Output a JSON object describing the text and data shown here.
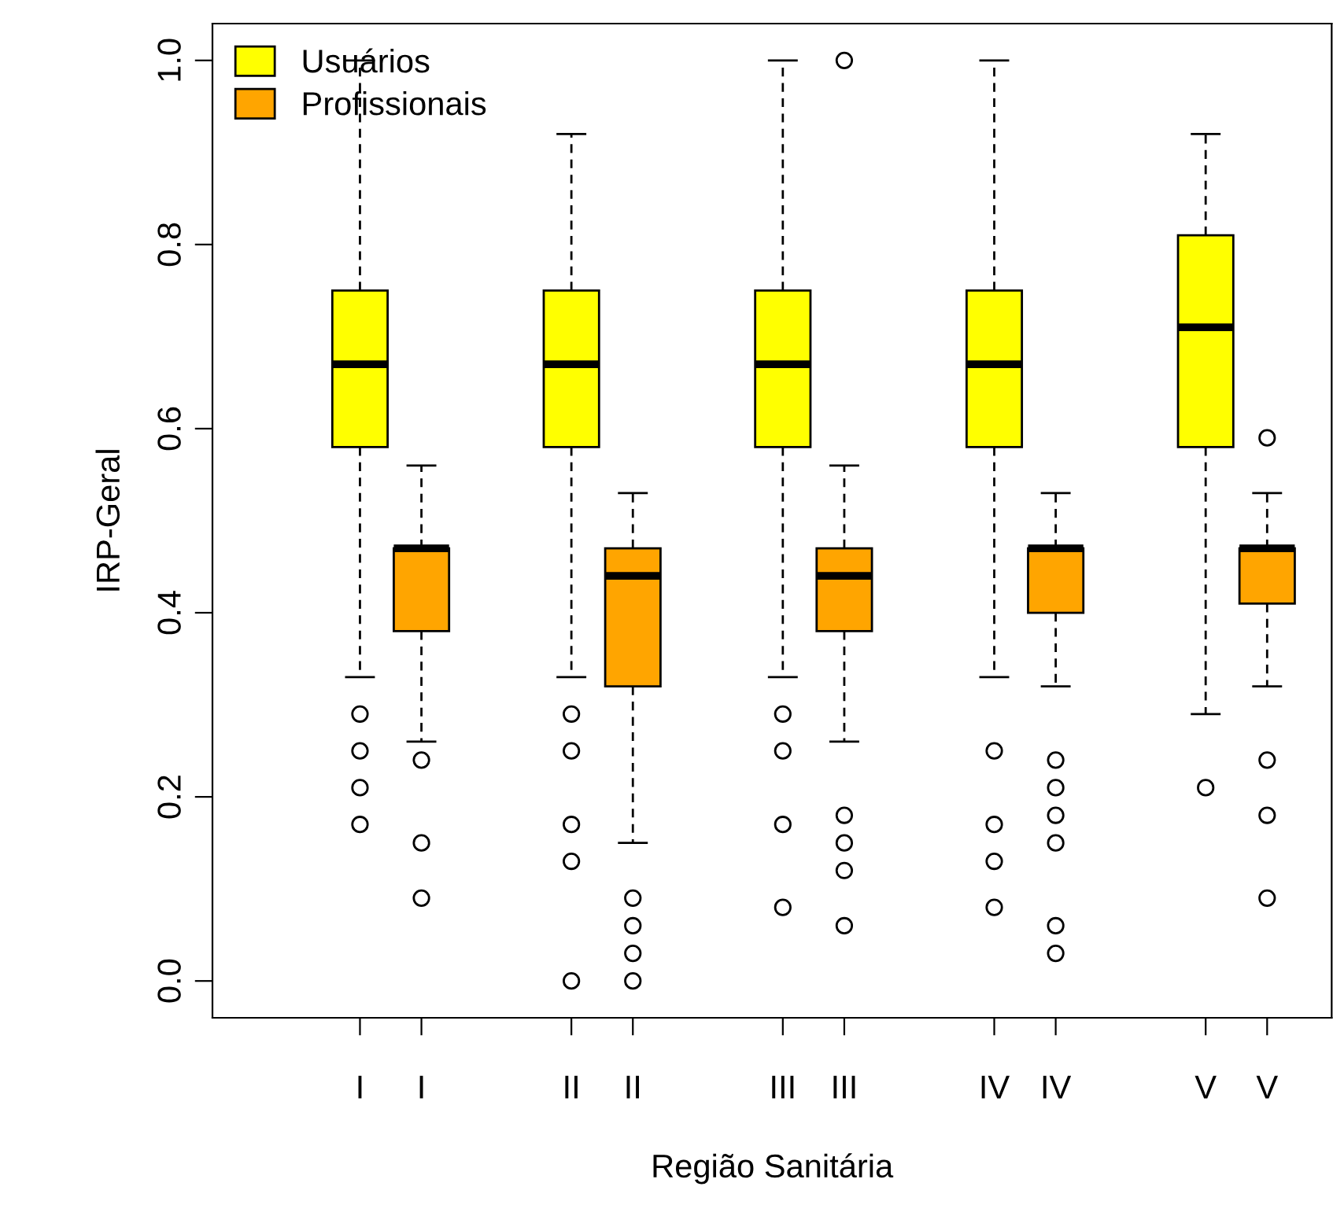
{
  "chart_data": {
    "type": "box",
    "xlabel": "Região Sanitária",
    "ylabel": "IRP-Geral",
    "categories": [
      "I",
      "I",
      "II",
      "II",
      "III",
      "III",
      "IV",
      "IV",
      "V",
      "V"
    ],
    "ylim": [
      -0.04,
      1.04
    ],
    "yticks": [
      {
        "value": 0,
        "label": "0.0"
      },
      0.2,
      0.4,
      0.6,
      0.8,
      {
        "value": 1,
        "label": "1.0"
      }
    ],
    "legend": "top left",
    "grid": false,
    "series": [
      {
        "name": "Usuários",
        "color": "#ffff00",
        "boxes": [
          {
            "low": 0.33,
            "q1": 0.58,
            "median": 0.67,
            "q3": 0.75,
            "high": 1.0,
            "outliers": [
              0.29,
              0.25,
              0.21,
              0.17
            ]
          },
          null,
          {
            "low": 0.33,
            "q1": 0.58,
            "median": 0.67,
            "q3": 0.75,
            "high": 0.92,
            "outliers": [
              0.29,
              0.25,
              0.17,
              0.13,
              0.0
            ]
          },
          null,
          {
            "low": 0.33,
            "q1": 0.58,
            "median": 0.67,
            "q3": 0.75,
            "high": 1.0,
            "outliers": [
              0.29,
              0.25,
              0.17,
              0.08
            ]
          },
          null,
          {
            "low": 0.33,
            "q1": 0.58,
            "median": 0.67,
            "q3": 0.75,
            "high": 1.0,
            "outliers": [
              0.25,
              0.17,
              0.13,
              0.08
            ]
          },
          null,
          {
            "low": 0.29,
            "q1": 0.58,
            "median": 0.71,
            "q3": 0.81,
            "high": 0.92,
            "outliers": [
              0.21
            ]
          },
          null
        ]
      },
      {
        "name": "Profissionais",
        "color": "#ffa500",
        "boxes": [
          null,
          {
            "low": 0.26,
            "q1": 0.38,
            "median": 0.47,
            "q3": 0.47,
            "high": 0.56,
            "outliers": [
              0.24,
              0.15,
              0.09
            ]
          },
          null,
          {
            "low": 0.15,
            "q1": 0.32,
            "median": 0.44,
            "q3": 0.47,
            "high": 0.53,
            "outliers": [
              0.09,
              0.06,
              0.03,
              0.0
            ]
          },
          null,
          {
            "low": 0.26,
            "q1": 0.38,
            "median": 0.44,
            "q3": 0.47,
            "high": 0.56,
            "outliers": [
              1.0,
              0.18,
              0.15,
              0.12,
              0.06
            ]
          },
          null,
          {
            "low": 0.32,
            "q1": 0.4,
            "median": 0.47,
            "q3": 0.47,
            "high": 0.53,
            "outliers": [
              0.24,
              0.21,
              0.18,
              0.15,
              0.06,
              0.03
            ]
          },
          null,
          {
            "low": 0.32,
            "q1": 0.41,
            "median": 0.47,
            "q3": 0.47,
            "high": 0.53,
            "outliers": [
              0.59,
              0.24,
              0.18,
              0.09
            ]
          }
        ]
      }
    ]
  }
}
